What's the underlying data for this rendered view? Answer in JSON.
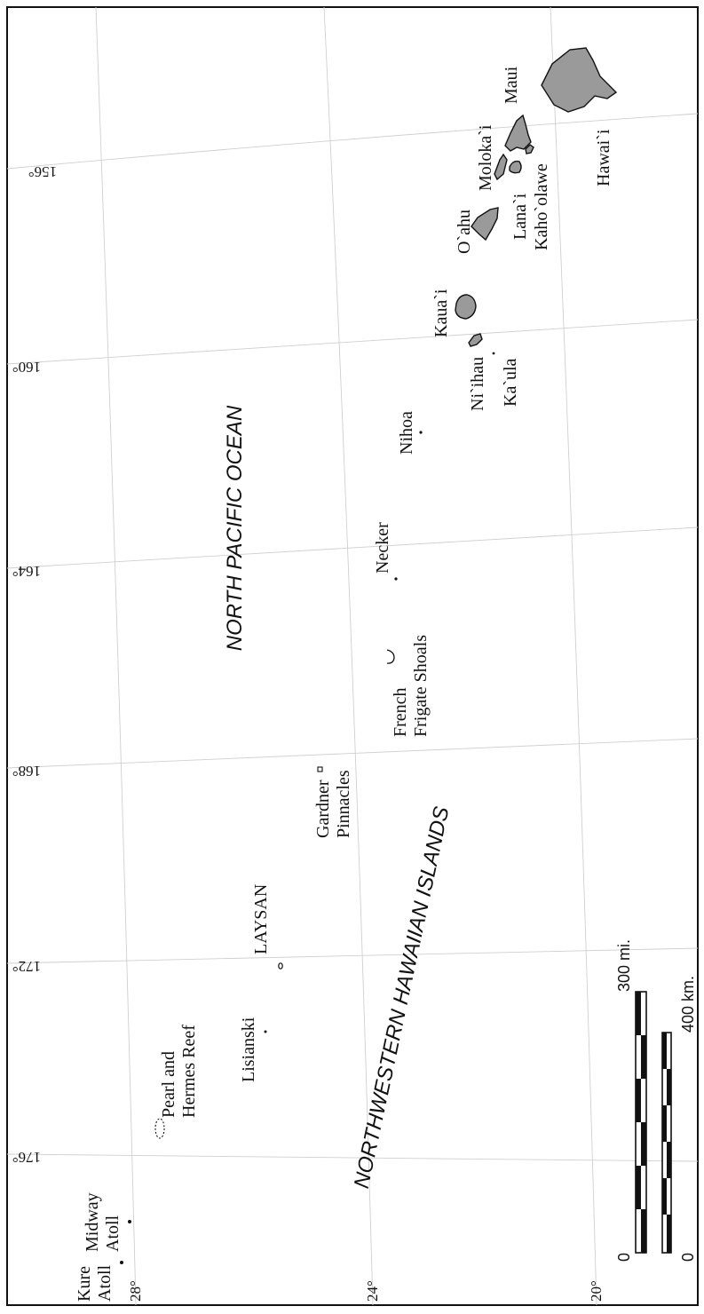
{
  "ocean_labels": {
    "north_pacific": "NORTH   PACIFIC   OCEAN",
    "nw_hawaiian": "NORTHWESTERN   HAWAIIAN   ISLANDS"
  },
  "islands": {
    "kure": [
      "Kure",
      "Atoll"
    ],
    "midway": [
      "Midway",
      "Atoll"
    ],
    "pearl_hermes": [
      "Pearl and",
      "Hermes Reef"
    ],
    "lisianski": "Lisianski",
    "laysan": "LAYSAN",
    "gardner": [
      "Gardner",
      "Pinnacles"
    ],
    "french_frigate": [
      "French",
      "Frigate Shoals"
    ],
    "necker": "Necker",
    "nihoa": "Nihoa",
    "niihau": "Ni`ihau",
    "kaula": "Ka`ula",
    "kauai": "Kaua`i",
    "oahu": "O`ahu",
    "molokai": "Moloka`i",
    "lanai": "Lana`i",
    "kahoolawe": "Kaho`olawe",
    "maui": "Maui",
    "hawaii": "Hawai`i"
  },
  "longitude_labels": [
    "156°",
    "160°",
    "164°",
    "168°",
    "172°",
    "176°"
  ],
  "latitude_labels": [
    "28°",
    "24°",
    "20°"
  ],
  "scale": {
    "miles_zero": "0",
    "miles_max": "300  mi.",
    "km_zero": "0",
    "km_max": "400  km."
  },
  "colors": {
    "land_fill": "#9a9a9a",
    "graticule": "#cfcfcf",
    "ink": "#111111"
  }
}
